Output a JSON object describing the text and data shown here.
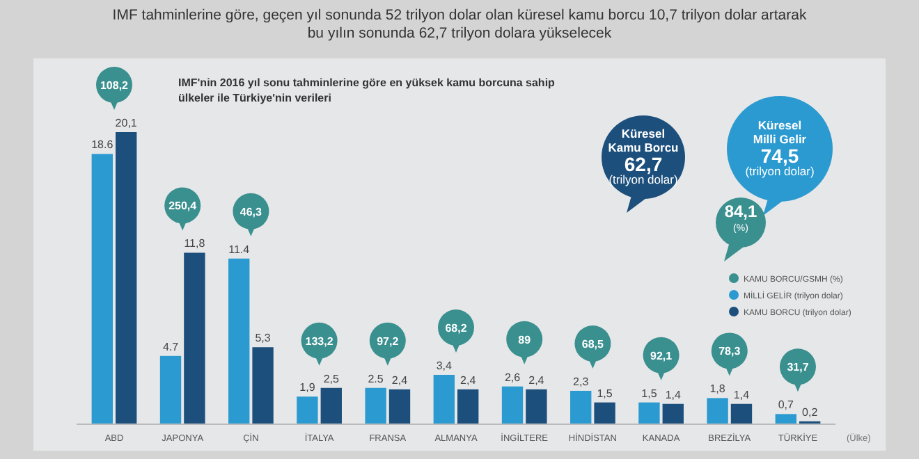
{
  "chart_data": {
    "type": "bar",
    "title": "IMF tahminlerine göre, geçen yıl sonunda 52 trilyon dolar olan küresel kamu borcu 10,7 trilyon dolar artarak bu yılın sonunda 62,7 trilyon dolara yükselecek",
    "subtitle": "IMF'nin 2016 yıl sonu tahminlerine göre en yüksek kamu borcuna sahip ülkeler ile Türkiye'nin verileri",
    "xlabel": "(Ülke)",
    "categories": [
      "ABD",
      "JAPONYA",
      "ÇİN",
      "İTALYA",
      "FRANSA",
      "ALMANYA",
      "İNGİLTERE",
      "HİNDİSTAN",
      "KANADA",
      "BREZİLYA",
      "TÜRKİYE"
    ],
    "series": [
      {
        "name": "MİLLİ GELİR (trilyon dolar)",
        "color": "#2b9ad0",
        "values": [
          18.6,
          4.7,
          11.4,
          1.9,
          2.5,
          3.4,
          2.6,
          2.3,
          1.5,
          1.8,
          0.7
        ],
        "value_labels": [
          "18.6",
          "4.7",
          "11.4",
          "1,9",
          "2.5",
          "3,4",
          "2,6",
          "2,3",
          "1,5",
          "1,8",
          "0,7"
        ]
      },
      {
        "name": "KAMU BORCU (trilyon dolar)",
        "color": "#1d4f7c",
        "values": [
          20.1,
          11.8,
          5.3,
          2.5,
          2.4,
          2.4,
          2.4,
          1.5,
          1.4,
          1.4,
          0.2
        ],
        "value_labels": [
          "20,1",
          "11,8",
          "5,3",
          "2,5",
          "2,4",
          "2,4",
          "2,4",
          "1,5",
          "1,4",
          "1,4",
          "0,2"
        ]
      }
    ],
    "legend_title": "KAMU BORCU/GSMH (%)",
    "annotations": [
      "108,2",
      "250,4",
      "46,3",
      "133,2",
      "97,2",
      "68,2",
      "89",
      "68,5",
      "92,1",
      "78,3",
      "31,7",
      "Küresel\nKamu Borcu\n62,7\n(trilyon dolar)",
      "Küresel\nMilli Gelir\n74,5\n(trilyon dolar)",
      "84,1\n(%)"
    ],
    "legend": "right",
    "tick_labels": "x"
  }
}
